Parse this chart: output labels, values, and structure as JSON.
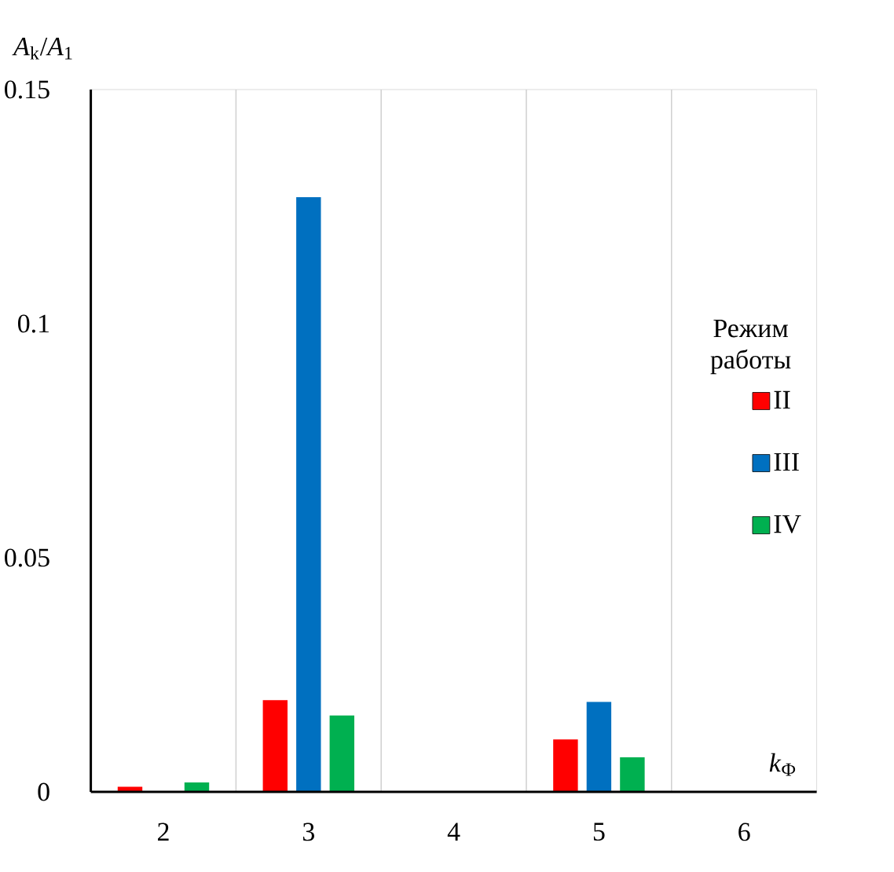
{
  "chart_data": {
    "type": "bar",
    "xlabel": "*k*$_{Ф}$",
    "ylabel": "*A*$_{k}$/*A*$_{1}$",
    "legend_title": "Режим работы",
    "categories": [
      "2",
      "3",
      "4",
      "5",
      "6"
    ],
    "series": [
      {
        "name": "II",
        "color": "#ff0000",
        "values": [
          0.0011,
          0.0196,
          0,
          0.0112,
          0
        ]
      },
      {
        "name": "III",
        "color": "#0070c0",
        "values": [
          0,
          0.127,
          0,
          0.0192,
          0
        ]
      },
      {
        "name": "IV",
        "color": "#00b050",
        "values": [
          0.002,
          0.0163,
          0,
          0.0074,
          0
        ]
      }
    ],
    "ylim": [
      0,
      0.15
    ],
    "yticks": [
      0,
      0.05,
      0.1,
      0.15
    ],
    "grid": "x",
    "legend": "right"
  }
}
